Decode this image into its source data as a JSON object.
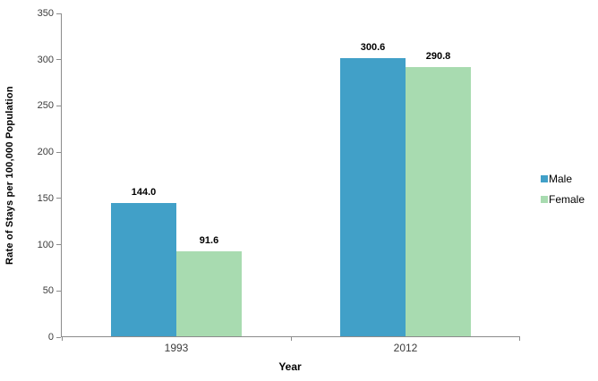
{
  "chart_data": {
    "type": "bar",
    "categories": [
      "1993",
      "2012"
    ],
    "series": [
      {
        "name": "Male",
        "color": "#41A0C8",
        "values": [
          144.0,
          300.6
        ],
        "labels": [
          "144.0",
          "300.6"
        ]
      },
      {
        "name": "Female",
        "color": "#A8DBB0",
        "values": [
          91.6,
          290.8
        ],
        "labels": [
          "91.6",
          "290.8"
        ]
      }
    ],
    "title": "",
    "xlabel": "Year",
    "ylabel": "Rate of Stays per 100,000 Population",
    "ylim": [
      0,
      350
    ],
    "y_tick_step": 50,
    "y_tick_labels": [
      "0",
      "50",
      "100",
      "150",
      "200",
      "250",
      "300",
      "350"
    ],
    "grid": false,
    "legend_position": "right",
    "axis_color": "#8c8c8c"
  }
}
